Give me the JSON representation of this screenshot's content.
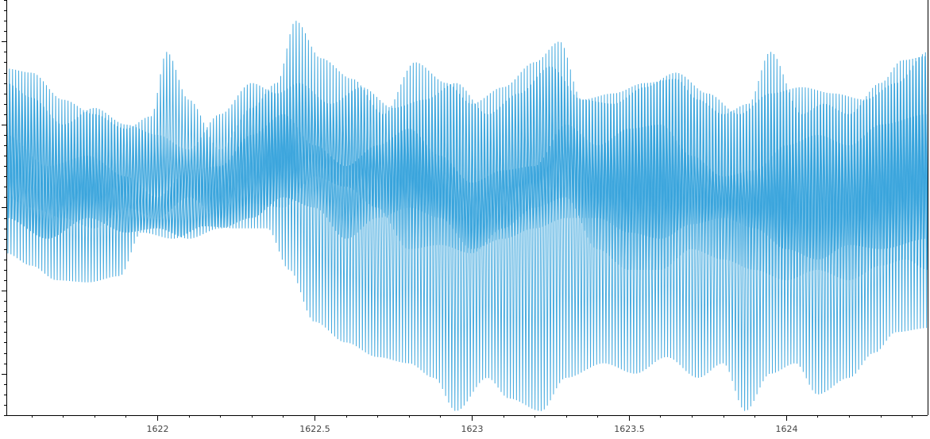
{
  "chart_data": {
    "type": "line",
    "title": "",
    "xlabel": "",
    "ylabel": "",
    "grid": false,
    "legend": "none",
    "xlim": [
      1621.52,
      1624.45
    ],
    "ylim": [
      -1.0,
      1.0
    ],
    "x_ticks": [
      {
        "value": 1622,
        "label": "1622"
      },
      {
        "value": 1622.5,
        "label": "1622.5"
      },
      {
        "value": 1623,
        "label": "1623"
      },
      {
        "value": 1623.5,
        "label": "1623.5"
      },
      {
        "value": 1624,
        "label": "1624"
      }
    ],
    "series_color": "#34A2DB",
    "oscillation_cycles_per_unit": 102,
    "envelopes": [
      {
        "role": "wide-band",
        "upper": [
          [
            1621.52,
            0.67
          ],
          [
            1621.6,
            0.65
          ],
          [
            1621.7,
            0.52
          ],
          [
            1621.8,
            0.45
          ],
          [
            1621.9,
            0.38
          ],
          [
            1621.98,
            0.44
          ],
          [
            1622.03,
            0.75
          ],
          [
            1622.1,
            0.52
          ],
          [
            1622.2,
            0.28
          ],
          [
            1622.3,
            0.48
          ],
          [
            1622.38,
            0.6
          ],
          [
            1622.44,
            0.9
          ],
          [
            1622.52,
            0.72
          ],
          [
            1622.62,
            0.62
          ],
          [
            1622.72,
            0.45
          ],
          [
            1622.82,
            0.7
          ],
          [
            1622.92,
            0.6
          ],
          [
            1623.0,
            0.5
          ],
          [
            1623.1,
            0.58
          ],
          [
            1623.2,
            0.7
          ],
          [
            1623.28,
            0.8
          ],
          [
            1623.35,
            0.52
          ],
          [
            1623.45,
            0.55
          ],
          [
            1623.55,
            0.6
          ],
          [
            1623.65,
            0.62
          ],
          [
            1623.72,
            0.52
          ],
          [
            1623.8,
            0.45
          ],
          [
            1623.88,
            0.5
          ],
          [
            1623.95,
            0.75
          ],
          [
            1624.05,
            0.45
          ],
          [
            1624.12,
            0.5
          ],
          [
            1624.2,
            0.45
          ],
          [
            1624.3,
            0.6
          ],
          [
            1624.37,
            0.71
          ],
          [
            1624.45,
            0.73
          ]
        ],
        "lower": [
          [
            1621.52,
            -0.22
          ],
          [
            1621.6,
            -0.28
          ],
          [
            1621.68,
            -0.35
          ],
          [
            1621.78,
            -0.36
          ],
          [
            1621.88,
            -0.33
          ],
          [
            1621.95,
            -0.12
          ],
          [
            1622.05,
            -0.15
          ],
          [
            1622.15,
            -0.09
          ],
          [
            1622.25,
            -0.1
          ],
          [
            1622.35,
            -0.1
          ],
          [
            1622.42,
            -0.3
          ],
          [
            1622.5,
            -0.55
          ],
          [
            1622.6,
            -0.65
          ],
          [
            1622.7,
            -0.72
          ],
          [
            1622.8,
            -0.75
          ],
          [
            1622.88,
            -0.82
          ],
          [
            1622.95,
            -0.98
          ],
          [
            1623.05,
            -0.82
          ],
          [
            1623.12,
            -0.92
          ],
          [
            1623.22,
            -0.98
          ],
          [
            1623.3,
            -0.82
          ],
          [
            1623.42,
            -0.75
          ],
          [
            1623.52,
            -0.8
          ],
          [
            1623.62,
            -0.72
          ],
          [
            1623.72,
            -0.82
          ],
          [
            1623.8,
            -0.75
          ],
          [
            1623.87,
            -0.98
          ],
          [
            1623.95,
            -0.8
          ],
          [
            1624.03,
            -0.75
          ],
          [
            1624.1,
            -0.9
          ],
          [
            1624.2,
            -0.82
          ],
          [
            1624.28,
            -0.7
          ],
          [
            1624.35,
            -0.6
          ],
          [
            1624.45,
            -0.58
          ]
        ]
      },
      {
        "role": "mid-band",
        "upper": [
          [
            1621.52,
            0.6
          ],
          [
            1621.6,
            0.53
          ],
          [
            1621.7,
            0.4
          ],
          [
            1621.8,
            0.48
          ],
          [
            1621.9,
            0.4
          ],
          [
            1622.0,
            0.35
          ],
          [
            1622.1,
            0.28
          ],
          [
            1622.2,
            0.45
          ],
          [
            1622.3,
            0.6
          ],
          [
            1622.38,
            0.55
          ],
          [
            1622.45,
            0.6
          ],
          [
            1622.55,
            0.5
          ],
          [
            1622.65,
            0.58
          ],
          [
            1622.75,
            0.48
          ],
          [
            1622.85,
            0.52
          ],
          [
            1622.95,
            0.6
          ],
          [
            1623.05,
            0.45
          ],
          [
            1623.15,
            0.55
          ],
          [
            1623.25,
            0.68
          ],
          [
            1623.35,
            0.52
          ],
          [
            1623.45,
            0.5
          ],
          [
            1623.55,
            0.58
          ],
          [
            1623.65,
            0.65
          ],
          [
            1623.75,
            0.55
          ],
          [
            1623.85,
            0.45
          ],
          [
            1623.95,
            0.55
          ],
          [
            1624.05,
            0.58
          ],
          [
            1624.15,
            0.55
          ],
          [
            1624.25,
            0.52
          ],
          [
            1624.35,
            0.6
          ],
          [
            1624.45,
            0.75
          ]
        ],
        "lower": [
          [
            1621.52,
            0.05
          ],
          [
            1621.6,
            0.0
          ],
          [
            1621.7,
            -0.05
          ],
          [
            1621.8,
            -0.1
          ],
          [
            1621.9,
            0.0
          ],
          [
            1622.0,
            -0.05
          ],
          [
            1622.1,
            0.05
          ],
          [
            1622.2,
            -0.05
          ],
          [
            1622.3,
            0.02
          ],
          [
            1622.4,
            0.0
          ],
          [
            1622.5,
            0.15
          ],
          [
            1622.6,
            0.1
          ],
          [
            1622.7,
            0.0
          ],
          [
            1622.8,
            -0.2
          ],
          [
            1622.9,
            -0.18
          ],
          [
            1623.0,
            -0.22
          ],
          [
            1623.1,
            -0.1
          ],
          [
            1623.2,
            0.0
          ],
          [
            1623.3,
            0.05
          ],
          [
            1623.4,
            -0.2
          ],
          [
            1623.5,
            -0.3
          ],
          [
            1623.6,
            -0.3
          ],
          [
            1623.7,
            -0.2
          ],
          [
            1623.8,
            -0.25
          ],
          [
            1623.9,
            -0.3
          ],
          [
            1624.0,
            -0.35
          ],
          [
            1624.1,
            -0.3
          ],
          [
            1624.2,
            -0.35
          ],
          [
            1624.3,
            -0.28
          ],
          [
            1624.38,
            -0.25
          ],
          [
            1624.45,
            -0.3
          ]
        ]
      },
      {
        "role": "inner-band",
        "upper": [
          [
            1621.52,
            0.35
          ],
          [
            1621.65,
            0.2
          ],
          [
            1621.78,
            0.25
          ],
          [
            1621.9,
            0.15
          ],
          [
            1622.0,
            0.05
          ],
          [
            1622.1,
            0.18
          ],
          [
            1622.2,
            0.2
          ],
          [
            1622.3,
            0.35
          ],
          [
            1622.4,
            0.45
          ],
          [
            1622.5,
            0.3
          ],
          [
            1622.6,
            0.2
          ],
          [
            1622.7,
            0.3
          ],
          [
            1622.8,
            0.38
          ],
          [
            1622.9,
            0.25
          ],
          [
            1623.0,
            0.12
          ],
          [
            1623.1,
            0.18
          ],
          [
            1623.2,
            0.2
          ],
          [
            1623.3,
            0.4
          ],
          [
            1623.4,
            0.3
          ],
          [
            1623.5,
            0.38
          ],
          [
            1623.6,
            0.4
          ],
          [
            1623.7,
            0.25
          ],
          [
            1623.8,
            0.15
          ],
          [
            1623.9,
            0.18
          ],
          [
            1624.0,
            0.3
          ],
          [
            1624.1,
            0.35
          ],
          [
            1624.2,
            0.3
          ],
          [
            1624.3,
            0.4
          ],
          [
            1624.45,
            0.45
          ]
        ],
        "lower": [
          [
            1621.52,
            -0.05
          ],
          [
            1621.65,
            -0.15
          ],
          [
            1621.78,
            -0.05
          ],
          [
            1621.9,
            -0.12
          ],
          [
            1622.0,
            -0.1
          ],
          [
            1622.1,
            -0.15
          ],
          [
            1622.2,
            -0.1
          ],
          [
            1622.3,
            -0.05
          ],
          [
            1622.4,
            0.05
          ],
          [
            1622.5,
            0.0
          ],
          [
            1622.6,
            -0.15
          ],
          [
            1622.7,
            -0.05
          ],
          [
            1622.8,
            0.0
          ],
          [
            1622.9,
            -0.05
          ],
          [
            1623.0,
            -0.2
          ],
          [
            1623.1,
            -0.15
          ],
          [
            1623.2,
            -0.1
          ],
          [
            1623.3,
            -0.05
          ],
          [
            1623.4,
            -0.05
          ],
          [
            1623.5,
            -0.12
          ],
          [
            1623.6,
            -0.15
          ],
          [
            1623.7,
            -0.08
          ],
          [
            1623.8,
            -0.05
          ],
          [
            1623.9,
            -0.1
          ],
          [
            1624.0,
            -0.2
          ],
          [
            1624.1,
            -0.25
          ],
          [
            1624.2,
            -0.18
          ],
          [
            1624.3,
            -0.2
          ],
          [
            1624.45,
            -0.15
          ]
        ]
      }
    ]
  }
}
